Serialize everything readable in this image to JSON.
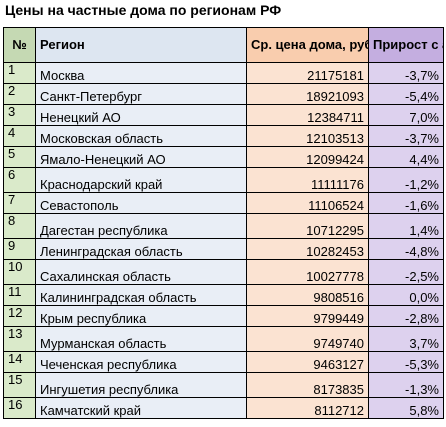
{
  "title": "Цены на частные дома по регионам РФ",
  "headers": {
    "num": "№",
    "region": "Регион",
    "price": "Ср. цена дома, руб.",
    "growth": "Прирост с апреля"
  },
  "rows": [
    {
      "num": "1",
      "region": "Москва",
      "price": "21175181",
      "growth": "-3,7%"
    },
    {
      "num": "2",
      "region": "Санкт-Петербург",
      "price": "18921093",
      "growth": "-5,4%"
    },
    {
      "num": "3",
      "region": "Ненецкий АО",
      "price": "12384711",
      "growth": "7,0%"
    },
    {
      "num": "4",
      "region": "Московская область",
      "price": "12103513",
      "growth": "-3,7%"
    },
    {
      "num": "5",
      "region": "Ямало-Ненецкий АО",
      "price": "12099424",
      "growth": "4,4%"
    },
    {
      "num": "6",
      "region": "Краснодарский край",
      "price": "11111176",
      "growth": "-1,2%"
    },
    {
      "num": "7",
      "region": "Севастополь",
      "price": "11106524",
      "growth": "-1,6%"
    },
    {
      "num": "8",
      "region": "Дагестан республика",
      "price": "10712295",
      "growth": "1,4%"
    },
    {
      "num": "9",
      "region": "Ленинградская область",
      "price": "10282453",
      "growth": "-4,8%"
    },
    {
      "num": "10",
      "region": "Сахалинская область",
      "price": "10027778",
      "growth": "-2,5%"
    },
    {
      "num": "11",
      "region": "Калининградская область",
      "price": "9808516",
      "growth": "0,0%"
    },
    {
      "num": "12",
      "region": "Крым республика",
      "price": "9799449",
      "growth": "-2,8%"
    },
    {
      "num": "13",
      "region": "Мурманская область",
      "price": "9749740",
      "growth": "3,7%"
    },
    {
      "num": "14",
      "region": "Чеченская республика",
      "price": "9463127",
      "growth": "-5,3%"
    },
    {
      "num": "15",
      "region": "Ингушетия республика",
      "price": "8173835",
      "growth": "-1,3%"
    },
    {
      "num": "16",
      "region": "Камчатский край",
      "price": "8112712",
      "growth": "5,8%"
    }
  ]
}
